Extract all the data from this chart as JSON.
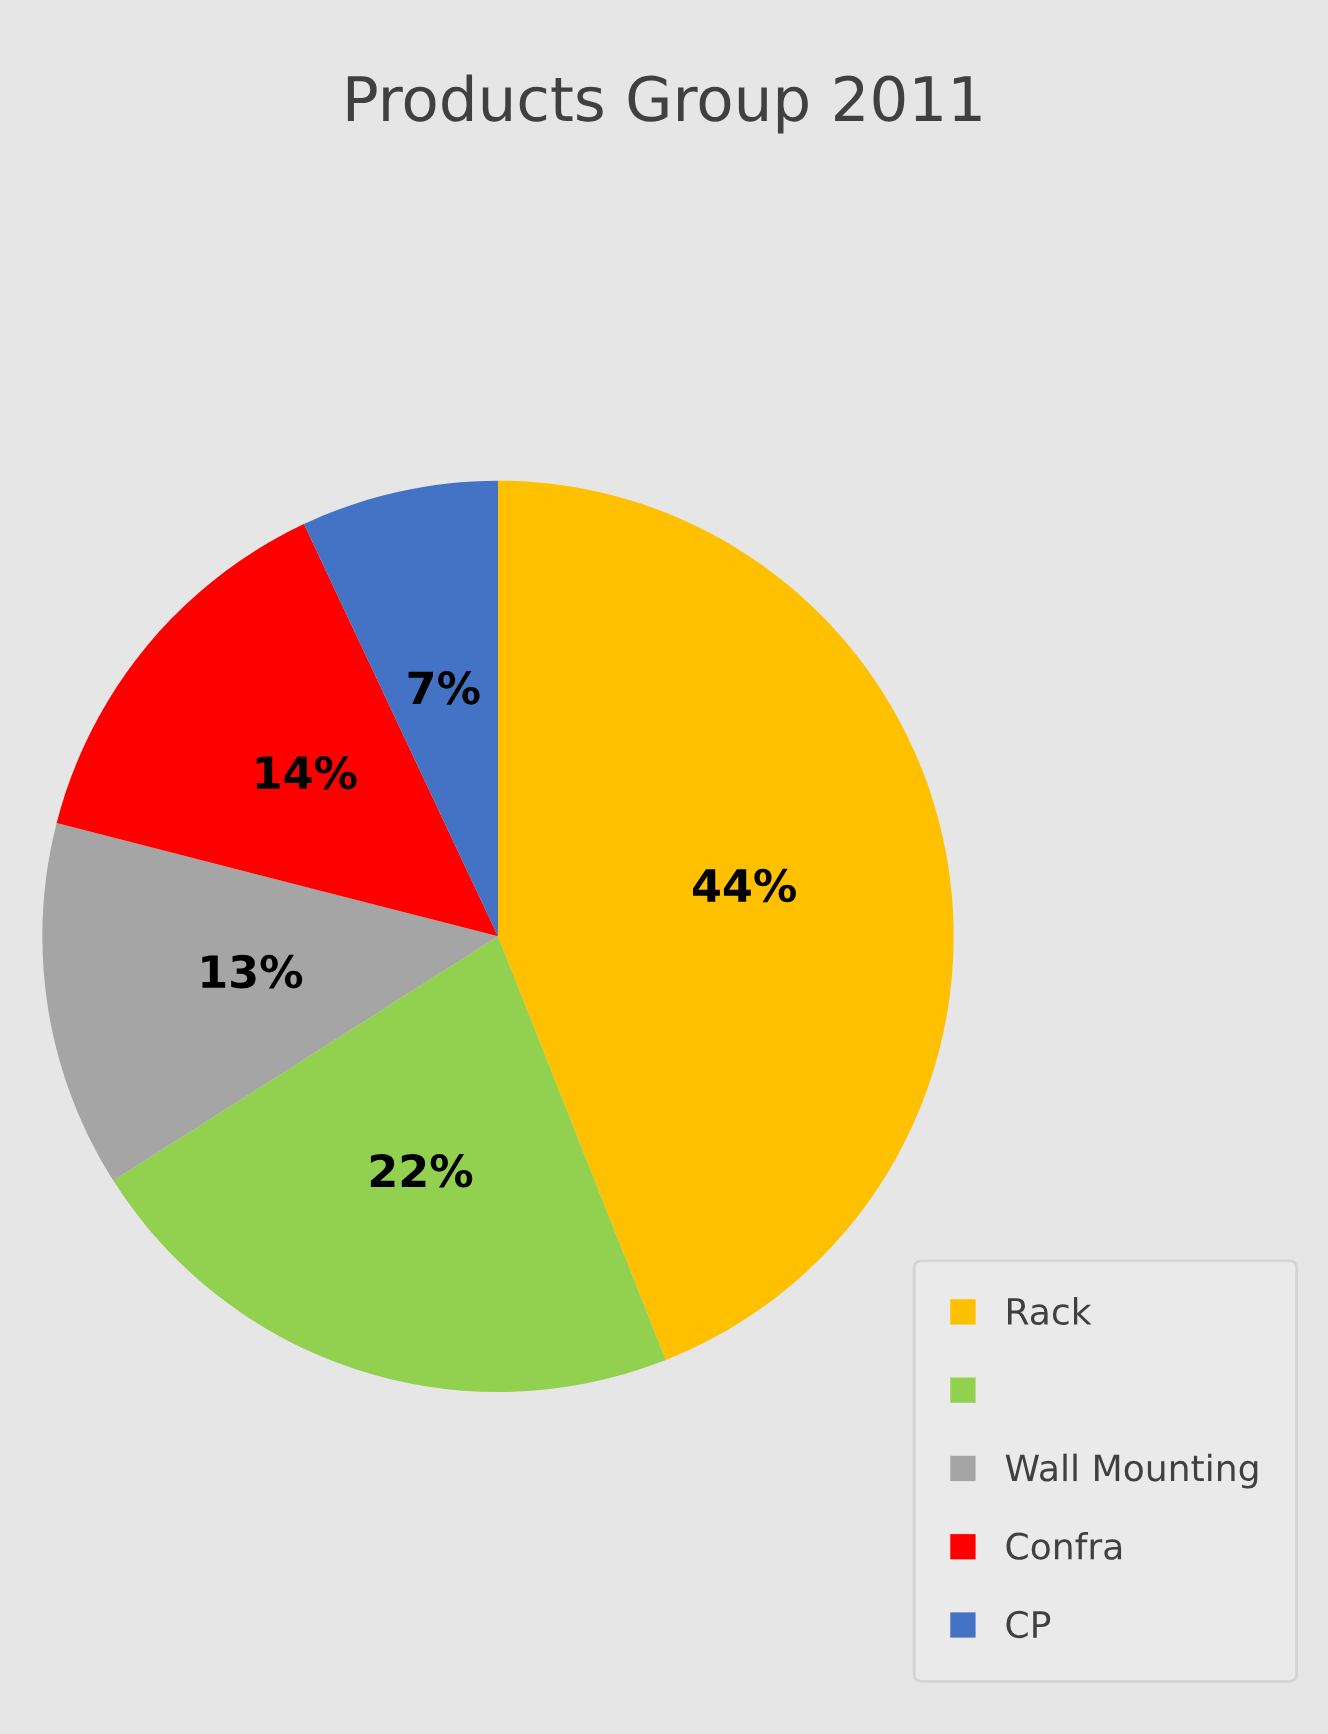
{
  "chart_data": {
    "type": "pie",
    "title": "Products Group 2011",
    "categories": [
      "Rack",
      null,
      "Wall Mounting",
      "Confra",
      "CP"
    ],
    "values": [
      44,
      22,
      13,
      14,
      7
    ],
    "colors": [
      "#ffc000",
      "#92d050",
      "#a5a5a5",
      "#ff0000",
      "#4472c4"
    ],
    "value_labels": [
      "44%",
      "22%",
      "13%",
      "14%",
      "7%"
    ],
    "legend": "bottom right"
  }
}
